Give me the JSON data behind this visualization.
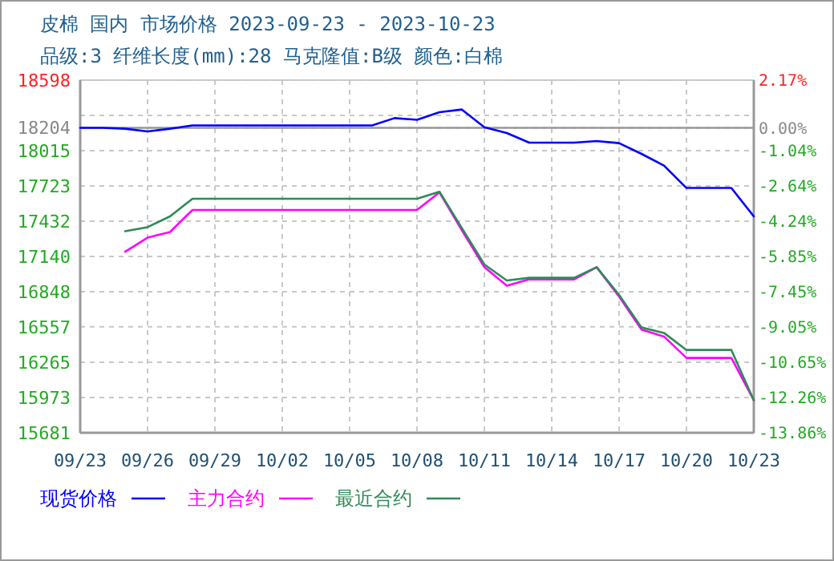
{
  "chart_data": {
    "type": "line",
    "title": "皮棉 国内 市场价格 2023-09-23 - 2023-10-23",
    "subtitle": "品级:3 纤维长度(mm):28 马克隆值:B级 颜色:白棉",
    "x": [
      "2023-09-23",
      "2023-09-24",
      "2023-09-25",
      "2023-09-26",
      "2023-09-27",
      "2023-09-28",
      "2023-09-29",
      "2023-09-30",
      "2023-10-01",
      "2023-10-02",
      "2023-10-03",
      "2023-10-04",
      "2023-10-05",
      "2023-10-06",
      "2023-10-07",
      "2023-10-08",
      "2023-10-09",
      "2023-10-10",
      "2023-10-11",
      "2023-10-12",
      "2023-10-13",
      "2023-10-14",
      "2023-10-15",
      "2023-10-16",
      "2023-10-17",
      "2023-10-18",
      "2023-10-19",
      "2023-10-20",
      "2023-10-21",
      "2023-10-22",
      "2023-10-23"
    ],
    "series": [
      {
        "name": "现货价格",
        "color": "#0000ff",
        "values": [
          18204,
          18204,
          18196,
          18174,
          18196,
          18223,
          18223,
          18223,
          18223,
          18223,
          18223,
          18223,
          18223,
          18223,
          18284,
          18270,
          18333,
          18355,
          18209,
          18160,
          18081,
          18081,
          18081,
          18094,
          18077,
          17988,
          17891,
          17706,
          17706,
          17706,
          17471
        ]
      },
      {
        "name": "主力合约",
        "color": "#ff00ff",
        "values": [
          null,
          null,
          17179,
          17295,
          17342,
          17524,
          17524,
          17524,
          17524,
          17524,
          17524,
          17524,
          17524,
          17524,
          17524,
          17524,
          17670,
          17356,
          17051,
          16897,
          16950,
          16950,
          16950,
          17051,
          16808,
          16534,
          16477,
          16300,
          16300,
          16300,
          15950
        ]
      },
      {
        "name": "最近合约",
        "color": "#2e8b57",
        "values": [
          null,
          null,
          17348,
          17382,
          17471,
          17617,
          17617,
          17617,
          17617,
          17617,
          17617,
          17617,
          17617,
          17617,
          17617,
          17617,
          17675,
          17374,
          17073,
          16941,
          16963,
          16963,
          16963,
          17051,
          16821,
          16552,
          16507,
          16366,
          16366,
          16366,
          15950
        ]
      }
    ],
    "xlim": [
      "2023-09-23",
      "2023-10-23"
    ],
    "xticks": [
      {
        "value": "2023-09-23",
        "label": "09/23"
      },
      {
        "value": "2023-09-26",
        "label": "09/26"
      },
      {
        "value": "2023-09-29",
        "label": "09/29"
      },
      {
        "value": "2023-10-02",
        "label": "10/02"
      },
      {
        "value": "2023-10-05",
        "label": "10/05"
      },
      {
        "value": "2023-10-08",
        "label": "10/08"
      },
      {
        "value": "2023-10-11",
        "label": "10/11"
      },
      {
        "value": "2023-10-14",
        "label": "10/14"
      },
      {
        "value": "2023-10-17",
        "label": "10/17"
      },
      {
        "value": "2023-10-20",
        "label": "10/20"
      },
      {
        "value": "2023-10-23",
        "label": "10/23"
      }
    ],
    "ylim": [
      15681,
      18598
    ],
    "yticks": [
      18598,
      {
        "value": 18306,
        "label": null
      },
      18204,
      18015,
      17723,
      17432,
      17140,
      16848,
      16557,
      16265,
      15973,
      15681
    ],
    "y2lim": [
      -13.86,
      2.17
    ],
    "y2ticks": [
      {
        "value": 2.17,
        "label": "2.17%"
      },
      {
        "value": 0,
        "label": "0.00%"
      },
      {
        "value": -1.04,
        "label": "-1.04%"
      },
      {
        "value": -2.64,
        "label": "-2.64%"
      },
      {
        "value": -4.24,
        "label": "-4.24%"
      },
      {
        "value": -5.85,
        "label": "-5.85%"
      },
      {
        "value": -7.45,
        "label": "-7.45%"
      },
      {
        "value": -9.05,
        "label": "-9.05%"
      },
      {
        "value": -10.65,
        "label": "-10.65%"
      },
      {
        "value": -12.26,
        "label": "-12.26%"
      },
      {
        "value": -13.86,
        "label": "-13.86%"
      }
    ],
    "ref_lines": [
      {
        "axis": "y",
        "value": 18204,
        "color": "#999999",
        "line_style": "solid"
      }
    ],
    "grid": true,
    "legend": "bottom",
    "marker": "none",
    "line_style": "solid"
  }
}
